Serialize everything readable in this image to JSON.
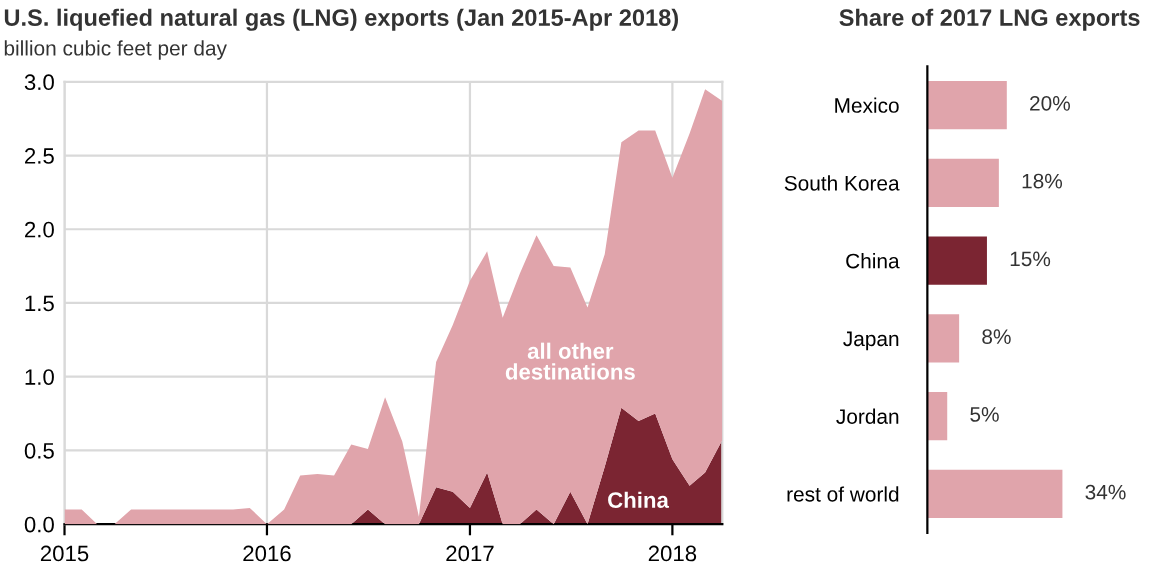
{
  "chart_data": [
    {
      "type": "area",
      "stacked": true,
      "title": "U.S. liquefied natural gas (LNG) exports (Jan 2015-Apr 2018)",
      "subtitle": "billion cubic feet per day",
      "x": [
        "2015-01",
        "2015-02",
        "2015-03",
        "2015-04",
        "2015-05",
        "2015-06",
        "2015-07",
        "2015-08",
        "2015-09",
        "2015-10",
        "2015-11",
        "2015-12",
        "2016-01",
        "2016-02",
        "2016-03",
        "2016-04",
        "2016-05",
        "2016-06",
        "2016-07",
        "2016-08",
        "2016-09",
        "2016-10",
        "2016-11",
        "2016-12",
        "2017-01",
        "2017-02",
        "2017-03",
        "2017-04",
        "2017-05",
        "2017-06",
        "2017-07",
        "2017-08",
        "2017-09",
        "2017-10",
        "2017-11",
        "2017-12",
        "2018-01",
        "2018-02",
        "2018-03",
        "2018-04"
      ],
      "series": [
        {
          "name": "China",
          "color": "#7b2532",
          "values": [
            0,
            0,
            0,
            0,
            0,
            0,
            0,
            0,
            0,
            0,
            0,
            0,
            0,
            0,
            0,
            0,
            0,
            0,
            0.1,
            0,
            0,
            0,
            0.25,
            0.22,
            0.11,
            0.35,
            0,
            0,
            0.1,
            0,
            0.22,
            0,
            0.39,
            0.79,
            0.7,
            0.75,
            0.44,
            0.26,
            0.35,
            0.57
          ]
        },
        {
          "name": "all other\ndestinations",
          "color": "#e0a4ab",
          "values": [
            0.1,
            0.1,
            0,
            0,
            0.1,
            0.1,
            0.1,
            0.1,
            0.1,
            0.1,
            0.1,
            0.11,
            0,
            0.1,
            0.33,
            0.34,
            0.33,
            0.54,
            0.41,
            0.86,
            0.56,
            0.05,
            0.85,
            1.13,
            1.54,
            1.5,
            1.4,
            1.7,
            1.86,
            1.75,
            1.52,
            1.47,
            1.44,
            1.8,
            1.97,
            1.92,
            1.91,
            2.39,
            2.6,
            2.3
          ]
        }
      ],
      "xlim": [
        "2015-01",
        "2018-04"
      ],
      "xticks": [
        {
          "value": "2015-01",
          "label": "2015"
        },
        {
          "value": "2016-01",
          "label": "2016"
        },
        {
          "value": "2017-01",
          "label": "2017"
        },
        {
          "value": "2018-01",
          "label": "2018"
        }
      ],
      "ylim": [
        0,
        3.0
      ],
      "yticks": [
        {
          "value": 0,
          "label": "0.0"
        },
        {
          "value": 0.5,
          "label": "0.5"
        },
        {
          "value": 1,
          "label": "1.0"
        },
        {
          "value": 1.5,
          "label": "1.5"
        },
        {
          "value": 2,
          "label": "2.0"
        },
        {
          "value": 2.5,
          "label": "2.5"
        },
        {
          "value": 3,
          "label": "3.0"
        }
      ],
      "grid": true
    },
    {
      "type": "bar",
      "orientation": "horizontal",
      "title": "Share of 2017 LNG exports",
      "categories": [
        "Mexico",
        "South Korea",
        "China",
        "Japan",
        "Jordan",
        "rest of world"
      ],
      "values": [
        20,
        18,
        15,
        8,
        5,
        34
      ],
      "colors": [
        "#e0a4ab",
        "#e0a4ab",
        "#7b2532",
        "#e0a4ab",
        "#e0a4ab",
        "#e0a4ab"
      ],
      "value_labels": [
        "20%",
        "18%",
        "15%",
        "8%",
        "5%",
        "34%"
      ],
      "tick_labels": "y",
      "grid": false
    }
  ]
}
